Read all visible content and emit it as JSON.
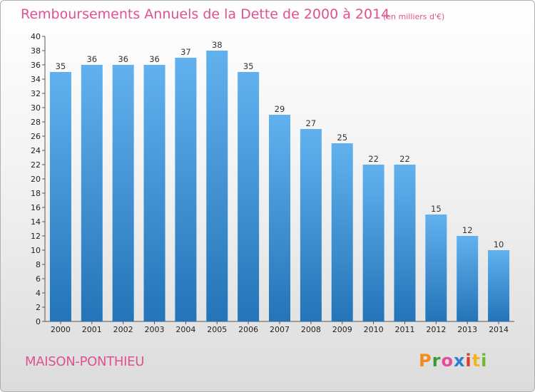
{
  "title": "Remboursements Annuels de la Dette de 2000 à 2014",
  "subtitle": "(en milliers d'€)",
  "commune": "MAISON-PONTHIEU",
  "logo": {
    "letters": [
      "P",
      "r",
      "o",
      "x",
      "i",
      "t",
      "i"
    ],
    "colors": [
      "#f28c1e",
      "#3a9a3a",
      "#e64b9a",
      "#2b7fd1",
      "#e23a2a",
      "#f2b51e",
      "#6fb82e"
    ]
  },
  "colors": {
    "bar_light": "#62b1ef",
    "bar_dark": "#2374b8",
    "title": "#e0518f"
  },
  "chart_data": {
    "type": "bar",
    "categories": [
      "2000",
      "2001",
      "2002",
      "2003",
      "2004",
      "2005",
      "2006",
      "2007",
      "2008",
      "2009",
      "2010",
      "2011",
      "2012",
      "2013",
      "2014"
    ],
    "values": [
      35,
      36,
      36,
      36,
      37,
      38,
      35,
      29,
      27,
      25,
      22,
      22,
      15,
      12,
      10
    ],
    "ylim": [
      0,
      40
    ],
    "yticks": [
      0,
      2,
      4,
      6,
      8,
      10,
      12,
      14,
      16,
      18,
      20,
      22,
      24,
      26,
      28,
      30,
      32,
      34,
      36,
      38,
      40
    ],
    "grid": false,
    "legend": "none"
  }
}
